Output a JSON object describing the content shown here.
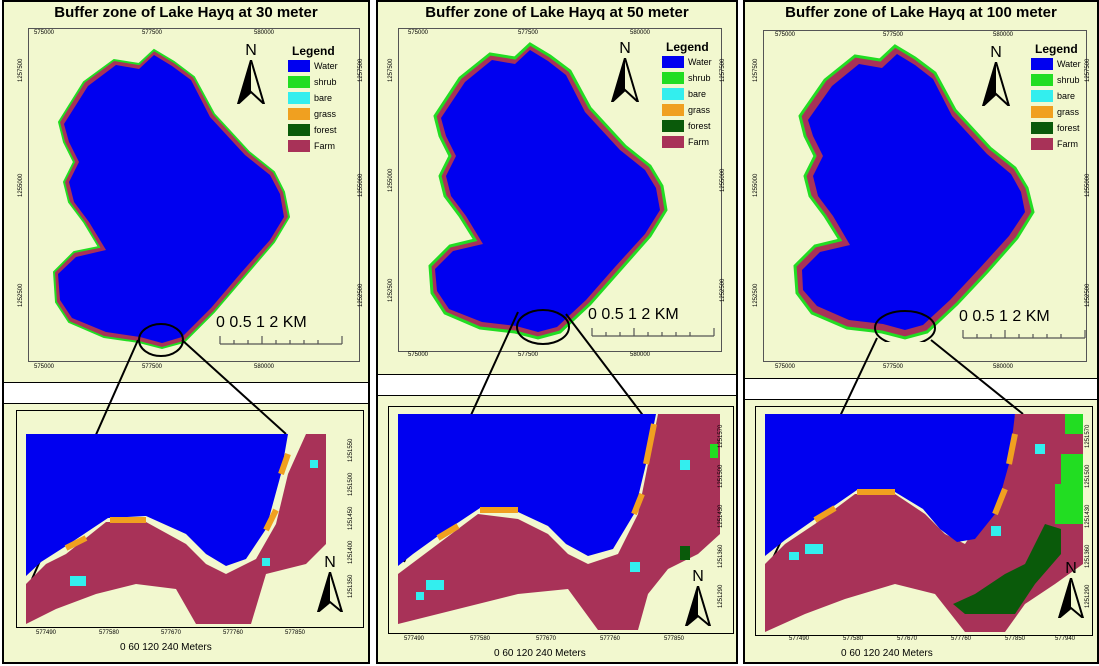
{
  "colors": {
    "water": "#0000f0",
    "shrub": "#22dd22",
    "bare": "#33eeee",
    "grass": "#f0a020",
    "forest": "#0a5a0a",
    "farm": "#a83258",
    "background": "#f2f8cf"
  },
  "legend": {
    "title": "Legend",
    "items": [
      {
        "label": "Water",
        "color": "#0000f0"
      },
      {
        "label": "shrub",
        "color": "#22dd22"
      },
      {
        "label": "bare",
        "color": "#33eeee"
      },
      {
        "label": "grass",
        "color": "#f0a020"
      },
      {
        "label": "forest",
        "color": "#0a5a0a"
      },
      {
        "label": "Farm",
        "color": "#a83258"
      }
    ]
  },
  "panels": [
    {
      "title": "Buffer zone of Lake Hayq at 30 meter",
      "x_ticks": [
        "575000",
        "577500",
        "580000"
      ],
      "y_ticks": [
        "1257500",
        "1255000",
        "1252500"
      ],
      "scale_bar": "0  0.5  1        2 KM",
      "inset_x_ticks": [
        "577490",
        "577580",
        "577670",
        "577760",
        "577850"
      ],
      "inset_y_ticks": [
        "1251550",
        "1251500",
        "1251450",
        "1251400",
        "1251350"
      ],
      "inset_scale_numbers": "0       60     120                240 Meters"
    },
    {
      "title": "Buffer zone of Lake Hayq at 50 meter",
      "x_ticks": [
        "575000",
        "577500",
        "580000"
      ],
      "y_ticks": [
        "1257500",
        "1255000",
        "1252500"
      ],
      "scale_bar": "0  0.5  1        2 KM",
      "inset_x_ticks": [
        "577490",
        "577580",
        "577670",
        "577760",
        "577850"
      ],
      "inset_y_ticks": [
        "1251570",
        "1251500",
        "1251430",
        "1251360",
        "1251290"
      ],
      "inset_scale_numbers": "0       60     120                240 Meters"
    },
    {
      "title": "Buffer zone of Lake Hayq at 100 meter",
      "x_ticks": [
        "575000",
        "577500",
        "580000"
      ],
      "y_ticks": [
        "1257500",
        "1255000",
        "1252500"
      ],
      "scale_bar": "0  0.5  1        2 KM",
      "inset_x_ticks": [
        "577490",
        "577580",
        "577670",
        "577760",
        "577850",
        "577940"
      ],
      "inset_y_ticks": [
        "1251570",
        "1251500",
        "1251430",
        "1251360",
        "1251290"
      ],
      "inset_scale_numbers": "0       60     120                240 Meters"
    }
  ],
  "north_label": "N"
}
